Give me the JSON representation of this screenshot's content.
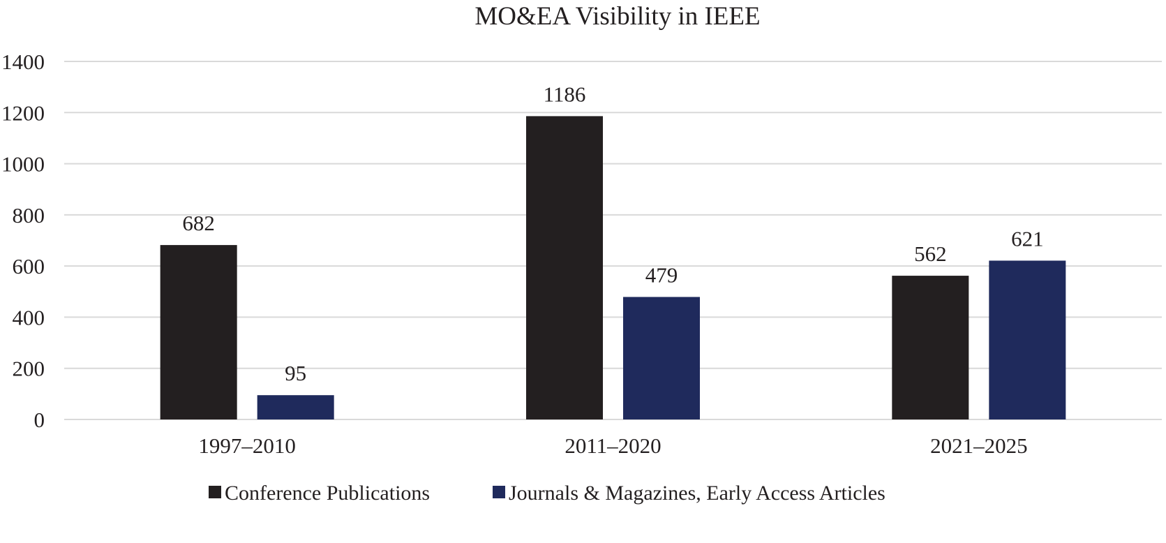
{
  "chart_data": {
    "type": "bar",
    "title": "MO&EA Visibility in IEEE",
    "xlabel": "",
    "ylabel": "",
    "categories": [
      "1997–2010",
      "2011–2020",
      "2021–2025"
    ],
    "series": [
      {
        "name": "Conference Publications",
        "values": [
          682,
          1186,
          562
        ],
        "color": "#231f20"
      },
      {
        "name": "Journals & Magazines, Early Access Articles",
        "values": [
          95,
          479,
          621
        ],
        "color": "#1f2a5c"
      }
    ],
    "ylim": [
      0,
      1400
    ],
    "yticks": [
      0,
      200,
      400,
      600,
      800,
      1000,
      1200,
      1400
    ],
    "grid": true,
    "legend_position": "bottom-center",
    "data_labels": true
  }
}
